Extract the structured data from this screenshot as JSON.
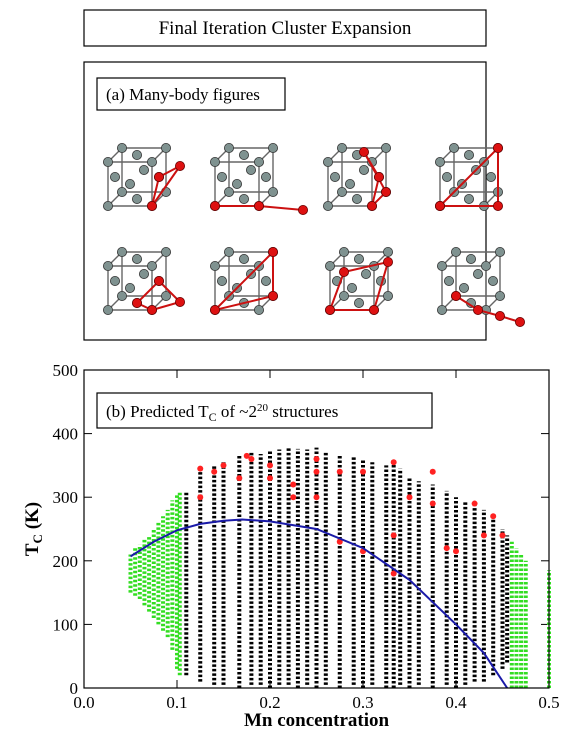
{
  "header": {
    "title": "Final Iteration Cluster Expansion"
  },
  "panel_a": {
    "label": "(a) Many-body figures"
  },
  "chart_data": {
    "type": "scatter",
    "annotation": [
      "(b) Predicted T",
      "C",
      " of ~2",
      "20",
      " structures"
    ],
    "xlabel": "Mn concentration",
    "ylabel": [
      "T",
      "C",
      " (K)"
    ],
    "xlim": [
      0,
      0.5
    ],
    "ylim": [
      0,
      500
    ],
    "xticks": [
      {
        "value": 0,
        "label": "0.0"
      },
      0.1,
      0.2,
      0.3,
      0.4,
      0.5
    ],
    "yticks": [
      0,
      100,
      200,
      300,
      400,
      500
    ],
    "series": [
      {
        "kind": "range",
        "color": "#33dd22",
        "x": [
          0.05,
          0.055,
          0.06,
          0.065,
          0.07,
          0.075,
          0.08,
          0.085,
          0.09,
          0.095,
          0.1,
          0.103,
          0.46,
          0.465,
          0.47,
          0.475,
          0.5
        ],
        "low": [
          150,
          145,
          140,
          130,
          120,
          110,
          100,
          90,
          80,
          60,
          30,
          20,
          0,
          0,
          0,
          0,
          0
        ],
        "high": [
          210,
          220,
          225,
          235,
          240,
          250,
          260,
          270,
          280,
          295,
          305,
          310,
          230,
          220,
          210,
          200,
          185
        ]
      },
      {
        "kind": "range",
        "color": "#000000",
        "x": [
          0.11,
          0.125,
          0.14,
          0.15,
          0.167,
          0.18,
          0.19,
          0.2,
          0.21,
          0.22,
          0.23,
          0.24,
          0.25,
          0.26,
          0.275,
          0.29,
          0.3,
          0.31,
          0.325,
          0.333,
          0.34,
          0.35,
          0.36,
          0.375,
          0.39,
          0.4,
          0.41,
          0.42,
          0.43,
          0.44,
          0.45,
          0.455
        ],
        "low": [
          20,
          10,
          5,
          5,
          0,
          5,
          5,
          0,
          5,
          5,
          0,
          5,
          0,
          5,
          0,
          5,
          0,
          5,
          0,
          0,
          5,
          0,
          5,
          0,
          5,
          0,
          5,
          10,
          10,
          20,
          30,
          40
        ],
        "high": [
          310,
          345,
          350,
          355,
          365,
          370,
          368,
          372,
          375,
          378,
          376,
          375,
          378,
          370,
          368,
          365,
          360,
          355,
          350,
          355,
          345,
          330,
          325,
          320,
          310,
          300,
          295,
          290,
          280,
          270,
          250,
          240
        ]
      },
      {
        "kind": "points",
        "color": "#ff2222",
        "x": [
          0.125,
          0.125,
          0.14,
          0.15,
          0.167,
          0.175,
          0.18,
          0.2,
          0.2,
          0.225,
          0.225,
          0.25,
          0.25,
          0.25,
          0.275,
          0.275,
          0.3,
          0.3,
          0.333,
          0.333,
          0.333,
          0.35,
          0.375,
          0.375,
          0.39,
          0.4,
          0.42,
          0.43,
          0.44,
          0.45
        ],
        "y": [
          345,
          300,
          340,
          350,
          330,
          365,
          360,
          350,
          330,
          320,
          300,
          360,
          340,
          300,
          230,
          340,
          340,
          215,
          355,
          240,
          180,
          300,
          340,
          290,
          220,
          215,
          290,
          240,
          270,
          240
        ]
      },
      {
        "kind": "line",
        "color": "#1a1aa8",
        "x": [
          0.05,
          0.075,
          0.1,
          0.125,
          0.15,
          0.17,
          0.2,
          0.25,
          0.3,
          0.35,
          0.4,
          0.43,
          0.455
        ],
        "y": [
          207,
          230,
          248,
          258,
          263,
          265,
          262,
          250,
          220,
          170,
          100,
          55,
          0
        ]
      }
    ]
  }
}
